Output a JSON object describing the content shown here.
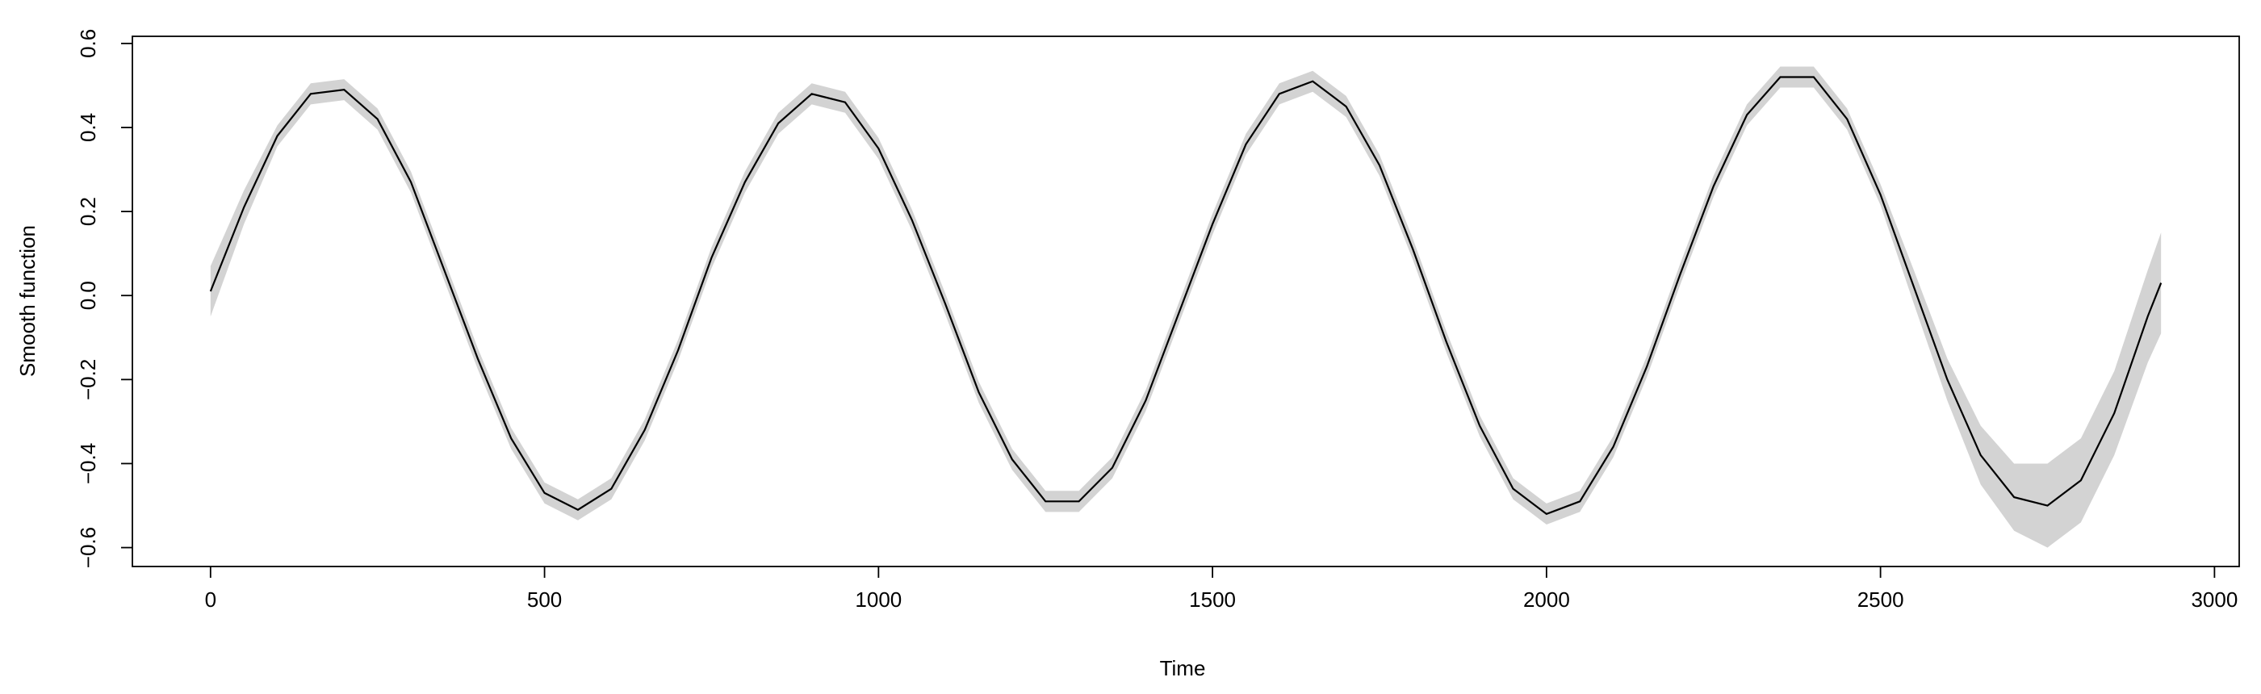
{
  "chart_data": {
    "type": "line",
    "x_label": "Time",
    "y_label": "Smooth function",
    "x": [
      0,
      50,
      100,
      150,
      200,
      250,
      300,
      350,
      400,
      450,
      500,
      550,
      600,
      650,
      700,
      750,
      800,
      850,
      900,
      950,
      1000,
      1050,
      1100,
      1150,
      1200,
      1250,
      1300,
      1350,
      1400,
      1450,
      1500,
      1550,
      1600,
      1650,
      1700,
      1750,
      1800,
      1850,
      1900,
      1950,
      2000,
      2050,
      2100,
      2150,
      2200,
      2250,
      2300,
      2350,
      2400,
      2450,
      2500,
      2550,
      2600,
      2650,
      2700,
      2750,
      2800,
      2850,
      2900,
      2920
    ],
    "values": [
      0.01,
      0.21,
      0.38,
      0.48,
      0.49,
      0.42,
      0.27,
      0.06,
      -0.15,
      -0.34,
      -0.47,
      -0.51,
      -0.46,
      -0.32,
      -0.13,
      0.09,
      0.27,
      0.41,
      0.48,
      0.46,
      0.35,
      0.18,
      -0.02,
      -0.23,
      -0.39,
      -0.49,
      -0.49,
      -0.41,
      -0.25,
      -0.04,
      0.17,
      0.36,
      0.48,
      0.51,
      0.45,
      0.31,
      0.11,
      -0.11,
      -0.31,
      -0.46,
      -0.52,
      -0.49,
      -0.36,
      -0.17,
      0.05,
      0.26,
      0.43,
      0.52,
      0.52,
      0.42,
      0.24,
      0.02,
      -0.2,
      -0.38,
      -0.48,
      -0.5,
      -0.44,
      -0.28,
      -0.05,
      0.03
    ],
    "lower": [
      -0.05,
      0.17,
      0.355,
      0.455,
      0.465,
      0.395,
      0.245,
      0.035,
      -0.175,
      -0.365,
      -0.495,
      -0.535,
      -0.485,
      -0.345,
      -0.155,
      0.065,
      0.245,
      0.385,
      0.455,
      0.435,
      0.325,
      0.155,
      -0.045,
      -0.255,
      -0.415,
      -0.515,
      -0.515,
      -0.435,
      -0.275,
      -0.065,
      0.145,
      0.335,
      0.455,
      0.485,
      0.425,
      0.285,
      0.085,
      -0.135,
      -0.335,
      -0.485,
      -0.545,
      -0.515,
      -0.385,
      -0.195,
      0.025,
      0.235,
      0.405,
      0.495,
      0.495,
      0.395,
      0.215,
      -0.02,
      -0.25,
      -0.45,
      -0.56,
      -0.6,
      -0.54,
      -0.38,
      -0.16,
      -0.09
    ],
    "upper": [
      0.07,
      0.25,
      0.405,
      0.505,
      0.515,
      0.445,
      0.295,
      0.085,
      -0.125,
      -0.315,
      -0.445,
      -0.485,
      -0.435,
      -0.295,
      -0.105,
      0.115,
      0.295,
      0.435,
      0.505,
      0.485,
      0.375,
      0.205,
      0.005,
      -0.205,
      -0.365,
      -0.465,
      -0.465,
      -0.385,
      -0.225,
      -0.015,
      0.195,
      0.385,
      0.505,
      0.535,
      0.475,
      0.335,
      0.135,
      -0.085,
      -0.285,
      -0.435,
      -0.495,
      -0.465,
      -0.335,
      -0.145,
      0.075,
      0.285,
      0.455,
      0.545,
      0.545,
      0.445,
      0.265,
      0.06,
      -0.15,
      -0.31,
      -0.4,
      -0.4,
      -0.34,
      -0.18,
      0.06,
      0.15
    ],
    "line_color": "#000000",
    "band_color": "#d3d3d3",
    "xlim": [
      -117,
      3037
    ],
    "ylim": [
      -0.645,
      0.617
    ],
    "xticks": [
      0,
      500,
      1000,
      1500,
      2000,
      2500,
      3000
    ],
    "yticks": [
      {
        "value": -0.6,
        "label": "−0.6"
      },
      {
        "value": -0.4,
        "label": "−0.4"
      },
      {
        "value": -0.2,
        "label": "−0.2"
      },
      {
        "value": 0,
        "label": "0.0"
      },
      0.2,
      0.4,
      0.6
    ]
  }
}
